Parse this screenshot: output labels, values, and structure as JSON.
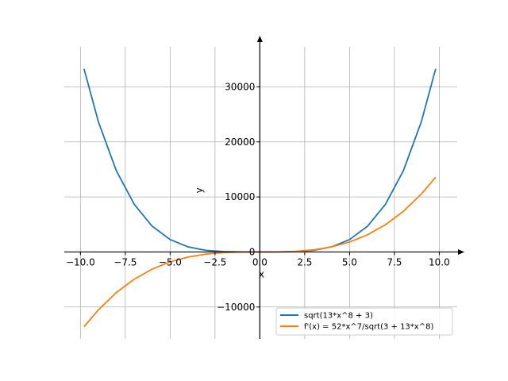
{
  "chart_data": {
    "type": "line",
    "title": "",
    "xlabel": "x",
    "ylabel": "y",
    "xlim": [
      -10.9,
      11.0
    ],
    "ylim": [
      -15800,
      39000
    ],
    "grid": true,
    "legend_position": "lower-right",
    "x_ticks": [
      -10.0,
      -7.5,
      -5.0,
      -2.5,
      0.0,
      2.5,
      5.0,
      7.5,
      10.0
    ],
    "x_tick_labels": [
      "−10.0",
      "−7.5",
      "−5.0",
      "−2.5",
      "0.0",
      "2.5",
      "5.0",
      "7.5",
      "10.0"
    ],
    "y_ticks": [
      -10000,
      0,
      10000,
      20000,
      30000
    ],
    "y_tick_labels": [
      "−10000",
      "0",
      "10000",
      "20000",
      "30000"
    ],
    "series": [
      {
        "name": "sqrt(13*x^8 + 3)",
        "color": "#1f77b4",
        "x": [
          -9.8,
          -9.0,
          -8.0,
          -7.0,
          -6.0,
          -5.0,
          -4.0,
          -3.0,
          -2.0,
          -1.0,
          0.0,
          1.0,
          2.0,
          3.0,
          4.0,
          5.0,
          6.0,
          7.0,
          8.0,
          9.0,
          9.8
        ],
        "y": [
          33276,
          23656,
          14768,
          8657,
          4673,
          2253,
          923,
          292,
          58,
          4,
          2,
          4,
          58,
          292,
          923,
          2253,
          4673,
          8657,
          14768,
          23656,
          33276
        ]
      },
      {
        "name": "f'(x) = 52*x^7/sqrt(3 + 13*x^8)",
        "color": "#ff7f0e",
        "x": [
          -9.8,
          -9.0,
          -8.0,
          -7.0,
          -6.0,
          -5.0,
          -4.0,
          -3.0,
          -2.0,
          -1.0,
          0.0,
          1.0,
          2.0,
          3.0,
          4.0,
          5.0,
          6.0,
          7.0,
          8.0,
          9.0,
          9.8
        ],
        "y": [
          -13582,
          -10514,
          -7384,
          -4947,
          -3115,
          -1803,
          -923,
          -389,
          -115,
          -13,
          0,
          13,
          115,
          389,
          923,
          1803,
          3115,
          4947,
          7384,
          10514,
          13582
        ]
      }
    ]
  }
}
